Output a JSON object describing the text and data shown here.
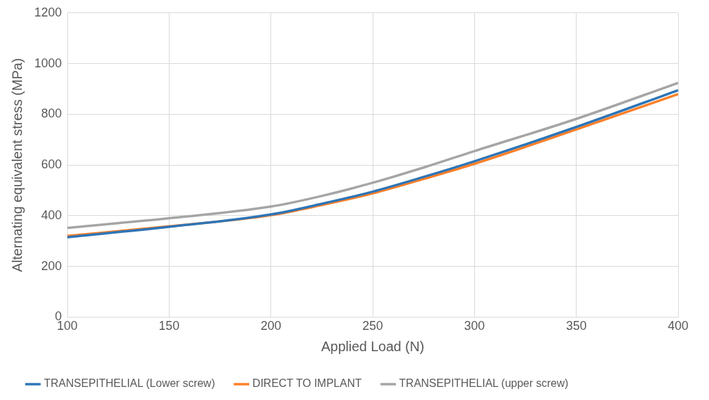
{
  "chart_data": {
    "type": "line",
    "xlabel": "Applied Load (N)",
    "ylabel": "Alternating equivalent stress (MPa)",
    "x": [
      100,
      150,
      200,
      225,
      250,
      275,
      300,
      350,
      400
    ],
    "series": [
      {
        "name": "TRANSEPITHELIAL (Lower screw)",
        "color": "#2e75b6",
        "values": [
          315,
          356,
          405,
          447,
          495,
          553,
          615,
          750,
          895
        ]
      },
      {
        "name": "DIRECT TO IMPLANT",
        "color": "#ff7f27",
        "values": [
          320,
          358,
          402,
          442,
          488,
          545,
          605,
          740,
          880
        ]
      },
      {
        "name": "TRANSEPITHELIAL (upper screw)",
        "color": "#a5a5a5",
        "values": [
          352,
          390,
          436,
          478,
          530,
          590,
          655,
          782,
          924
        ]
      }
    ],
    "xlim": [
      100,
      400
    ],
    "xticks": [
      100,
      150,
      200,
      250,
      300,
      350,
      400
    ],
    "ylim": [
      0,
      1200
    ],
    "yticks": [
      0,
      200,
      400,
      600,
      800,
      1000,
      1200
    ],
    "grid": true,
    "legend": "bottom",
    "marker": "none",
    "line_style": "solid"
  }
}
